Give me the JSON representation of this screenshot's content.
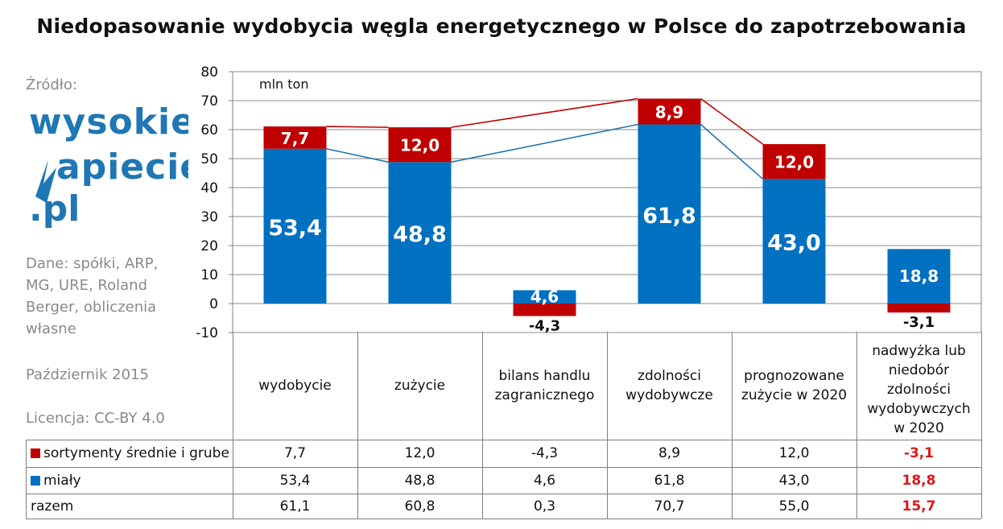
{
  "title": "Niedopasowanie wydobycia węgla energetycznego w Polsce do zapotrzebowania",
  "sidebar": {
    "source_label": "Źródło:",
    "logo_line1": "wysokie",
    "logo_line2": "napiecie",
    "logo_line3": ".pl",
    "data_note": "Dane: spółki, ARP, MG, URE, Roland Berger, obliczenia własne",
    "date": "Październik 2015",
    "license": "Licencja: CC-BY 4.0"
  },
  "colors": {
    "red": "#c00000",
    "blue": "#0070c0",
    "highlight": "#e01818"
  },
  "chart_data": {
    "type": "bar",
    "title": "Niedopasowanie wydobycia węgla energetycznego w Polsce do zapotrzebowania",
    "unit_label": "mln ton",
    "ylim": [
      -10,
      80
    ],
    "yticks": [
      -10,
      0,
      10,
      20,
      30,
      40,
      50,
      60,
      70,
      80
    ],
    "grid": true,
    "stacked": true,
    "categories": [
      "wydobycie",
      "zużycie",
      "bilans handlu zagranicznego",
      "zdolności wydobywcze",
      "prognozowane zużycie w 2020",
      "nadwyżka lub niedobór zdolności wydobywczych w 2020"
    ],
    "series": [
      {
        "name": "miały",
        "color": "#0070c0",
        "values": [
          53.4,
          48.8,
          4.6,
          61.8,
          43.0,
          18.8
        ],
        "labels": [
          "53,4",
          "48,8",
          "4,6",
          "61,8",
          "43,0",
          "18,8"
        ]
      },
      {
        "name": "sortymenty średnie i grube",
        "color": "#c00000",
        "values": [
          7.7,
          12.0,
          -4.3,
          8.9,
          12.0,
          -3.1
        ],
        "labels": [
          "7,7",
          "12,0",
          "-4,3",
          "8,9",
          "12,0",
          "-3,1"
        ]
      }
    ],
    "table": {
      "rows": [
        {
          "label": "sortymenty średnie i grube",
          "swatch": "#c00000",
          "values": [
            "7,7",
            "12,0",
            "-4,3",
            "8,9",
            "12,0",
            "-3,1"
          ]
        },
        {
          "label": "miały",
          "swatch": "#0070c0",
          "values": [
            "53,4",
            "48,8",
            "4,6",
            "61,8",
            "43,0",
            "18,8"
          ]
        },
        {
          "label": "razem",
          "swatch": "",
          "values": [
            "61,1",
            "60,8",
            "0,3",
            "70,7",
            "55,0",
            "15,7"
          ]
        }
      ]
    }
  }
}
